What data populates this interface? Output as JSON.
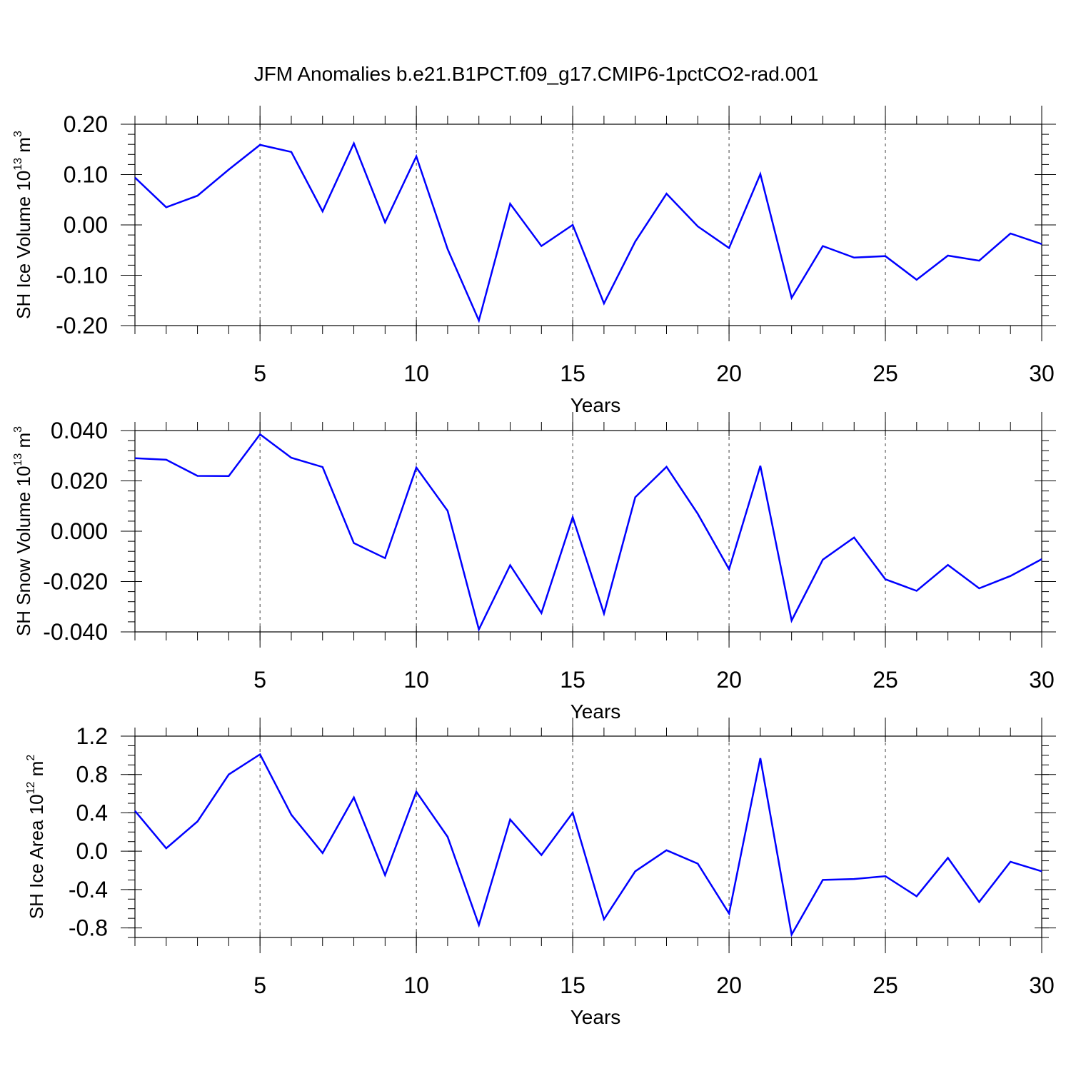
{
  "figure": {
    "title": "JFM Anomalies b.e21.B1PCT.f09_g17.CMIP6-1pctCO2-rad.001"
  },
  "colors": {
    "line": "#0000ff",
    "axis": "#000000",
    "background": "#ffffff"
  },
  "chart_data": [
    {
      "type": "line",
      "title": "",
      "xlabel": "Years",
      "ylabel": "SH Ice Volume 10",
      "ylabel_exp": "13",
      "ylabel_unit": " m",
      "ylabel_unit_exp": "3",
      "xlim": [
        1,
        30
      ],
      "ylim": [
        -0.2,
        0.2
      ],
      "xticks": [
        5,
        10,
        15,
        20,
        25,
        30
      ],
      "xtick_labels": [
        "5",
        "10",
        "15",
        "20",
        "25",
        "30"
      ],
      "yticks": [
        -0.2,
        -0.1,
        0.0,
        0.1,
        0.2
      ],
      "ytick_labels": [
        "-0.20",
        "-0.10",
        "0.00",
        "0.10",
        "0.20"
      ],
      "y_minor_step": 0.02,
      "grid_x": [
        5,
        10,
        15,
        20,
        25
      ],
      "series": [
        {
          "name": "SH Ice Volume",
          "x": [
            1,
            2,
            3,
            4,
            5,
            6,
            7,
            8,
            9,
            10,
            11,
            12,
            13,
            14,
            15,
            16,
            17,
            18,
            19,
            20,
            21,
            22,
            23,
            24,
            25,
            26,
            27,
            28,
            29,
            30
          ],
          "values": [
            0.094,
            0.035,
            0.058,
            0.11,
            0.159,
            0.145,
            0.027,
            0.162,
            0.005,
            0.136,
            -0.048,
            -0.19,
            0.042,
            -0.042,
            0.0,
            -0.156,
            -0.033,
            0.062,
            -0.003,
            -0.046,
            0.101,
            -0.145,
            -0.042,
            -0.065,
            -0.062,
            -0.109,
            -0.061,
            -0.071,
            -0.017,
            -0.038
          ]
        }
      ]
    },
    {
      "type": "line",
      "title": "",
      "xlabel": "Years",
      "ylabel": "SH Snow Volume 10",
      "ylabel_exp": "13",
      "ylabel_unit": " m",
      "ylabel_unit_exp": "3",
      "xlim": [
        1,
        30
      ],
      "ylim": [
        -0.04,
        0.04
      ],
      "xticks": [
        5,
        10,
        15,
        20,
        25,
        30
      ],
      "xtick_labels": [
        "5",
        "10",
        "15",
        "20",
        "25",
        "30"
      ],
      "yticks": [
        -0.04,
        -0.02,
        0.0,
        0.02,
        0.04
      ],
      "ytick_labels": [
        "-0.040",
        "-0.020",
        "0.000",
        "0.020",
        "0.040"
      ],
      "y_minor_step": 0.004,
      "grid_x": [
        5,
        10,
        15,
        20,
        25
      ],
      "series": [
        {
          "name": "SH Snow Volume",
          "x": [
            1,
            2,
            3,
            4,
            5,
            6,
            7,
            8,
            9,
            10,
            11,
            12,
            13,
            14,
            15,
            16,
            17,
            18,
            19,
            20,
            21,
            22,
            23,
            24,
            25,
            26,
            27,
            28,
            29,
            30
          ],
          "values": [
            0.029,
            0.0284,
            0.022,
            0.0219,
            0.0385,
            0.0292,
            0.0255,
            -0.0047,
            -0.0107,
            0.0253,
            0.0081,
            -0.039,
            -0.0135,
            -0.0325,
            0.0056,
            -0.0327,
            0.0135,
            0.0256,
            0.0069,
            -0.0151,
            0.026,
            -0.0355,
            -0.0113,
            -0.0025,
            -0.0191,
            -0.0237,
            -0.0134,
            -0.0227,
            -0.0178,
            -0.0111
          ]
        }
      ]
    },
    {
      "type": "line",
      "title": "",
      "xlabel": "Years",
      "ylabel": "SH Ice Area 10",
      "ylabel_exp": "12",
      "ylabel_unit": " m",
      "ylabel_unit_exp": "2",
      "xlim": [
        1,
        30
      ],
      "ylim": [
        -0.9,
        1.2
      ],
      "xticks": [
        5,
        10,
        15,
        20,
        25,
        30
      ],
      "xtick_labels": [
        "5",
        "10",
        "15",
        "20",
        "25",
        "30"
      ],
      "yticks": [
        -0.8,
        -0.4,
        0.0,
        0.4,
        0.8,
        1.2
      ],
      "ytick_labels": [
        "-0.8",
        "-0.4",
        "0.0",
        "0.4",
        "0.8",
        "1.2"
      ],
      "y_minor_step": 0.1,
      "grid_x": [
        5,
        10,
        15,
        20,
        25
      ],
      "series": [
        {
          "name": "SH Ice Area",
          "x": [
            1,
            2,
            3,
            4,
            5,
            6,
            7,
            8,
            9,
            10,
            11,
            12,
            13,
            14,
            15,
            16,
            17,
            18,
            19,
            20,
            21,
            22,
            23,
            24,
            25,
            26,
            27,
            28,
            29,
            30
          ],
          "values": [
            0.42,
            0.03,
            0.31,
            0.8,
            1.01,
            0.38,
            -0.02,
            0.56,
            -0.25,
            0.62,
            0.15,
            -0.77,
            0.33,
            -0.04,
            0.4,
            -0.71,
            -0.21,
            0.01,
            -0.13,
            -0.65,
            0.97,
            -0.87,
            -0.3,
            -0.29,
            -0.26,
            -0.47,
            -0.07,
            -0.53,
            -0.11,
            -0.21
          ]
        }
      ]
    }
  ]
}
